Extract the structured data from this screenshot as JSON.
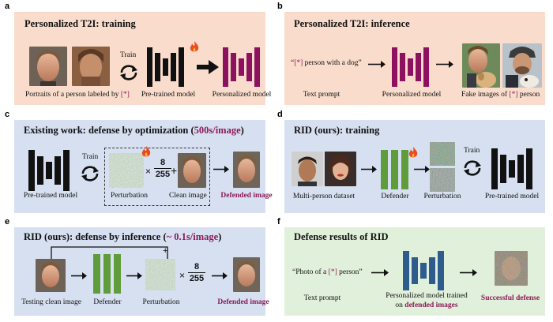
{
  "colors": {
    "panel_peach": "#f9dccb",
    "panel_blue": "#d6e0f0",
    "panel_green": "#e1f0da",
    "accent": "#8b1a5a",
    "net_black": "#111111",
    "net_magenta": "#8e1160",
    "net_green": "#5f9c3b",
    "net_blue": "#2e5c8c"
  },
  "panels": {
    "a": {
      "label": "a",
      "title": "Personalized T2I: training",
      "train_label": "Train",
      "captions": {
        "portraits_prefix": "Portraits of a person labeled by ",
        "portraits_token": "[*]",
        "pretrained": "Pre-trained model",
        "personalized": "Personalized model"
      },
      "icons": [
        "refresh-icon",
        "fire-icon",
        "arrow-right-icon"
      ]
    },
    "b": {
      "label": "b",
      "title": "Personalized T2I: inference",
      "prompt_open": "“",
      "prompt_token": "[*]",
      "prompt_rest": " person with a dog”",
      "captions": {
        "text_prompt": "Text prompt",
        "personalized": "Personalized model",
        "fake_prefix": "Fake images of ",
        "fake_token": "[*]",
        "fake_suffix": " person"
      }
    },
    "c": {
      "label": "c",
      "title_main": "Existing work: defense by optimization (",
      "title_accent": "500s/image",
      "title_close": ")",
      "train_label": "Train",
      "frac_num": "8",
      "frac_den": "255",
      "captions": {
        "pretrained": "Pre-trained model",
        "perturbation": "Perturbation",
        "clean": "Clean image",
        "defended": "Defended image"
      }
    },
    "d": {
      "label": "d",
      "title": "RID (ours): training",
      "train_label": "Train",
      "captions": {
        "dataset": "Multi-person dataset",
        "defender": "Defender",
        "perturbation": "Perturbation",
        "pretrained": "Pre-trained model"
      }
    },
    "e": {
      "label": "e",
      "title_main": "RID (ours): defense by inference (",
      "title_accent": "~ 0.1s/image",
      "title_close": ")",
      "plus": "+",
      "frac_num": "8",
      "frac_den": "255",
      "captions": {
        "testing": "Testing clean image",
        "defender": "Defender",
        "perturbation": "Perturbation",
        "defended": "Defended image"
      }
    },
    "f": {
      "label": "f",
      "title": "Defense results of RID",
      "prompt_open": "“Photo of a ",
      "prompt_token": "[*]",
      "prompt_rest": " person”",
      "captions": {
        "text_prompt": "Text prompt",
        "model_line1": "Personalized model trained",
        "model_line2_prefix": "on ",
        "model_line2_accent": "defended images",
        "success": "Successful defense"
      }
    }
  }
}
